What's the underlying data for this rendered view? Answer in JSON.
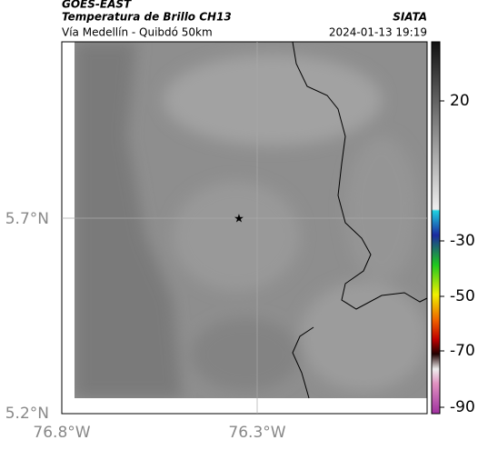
{
  "header": {
    "title": "GOES-EAST",
    "subtitle": "Temperatura de Brillo CH13",
    "route": "Vía Medellín - Quibdó 50km",
    "source": "SIATA",
    "timestamp": "2024-01-13 19:19"
  },
  "map": {
    "lat_labels": [
      "5.7°N",
      "5.2°N"
    ],
    "lon_labels": [
      "76.8°W",
      "76.3°W"
    ]
  },
  "colorbar": {
    "ticks": [
      "20",
      "-30",
      "-50",
      "-70",
      "-90"
    ]
  }
}
